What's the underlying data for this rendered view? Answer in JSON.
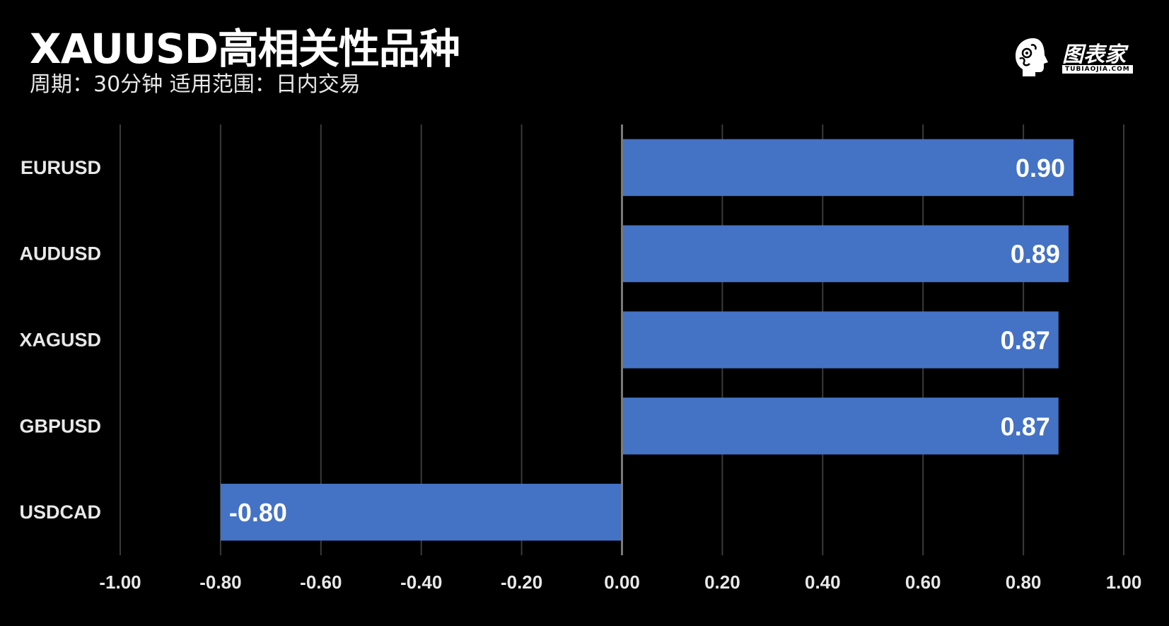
{
  "header": {
    "title": "XAUUSD高相关性品种",
    "subtitle": "周期：30分钟  适用范围：日内交易"
  },
  "logo": {
    "text": "图表家",
    "subtext": "TUBIAOJIA.COM",
    "icon": "brain-head-icon"
  },
  "colors": {
    "background": "#000000",
    "bar": "#4472C4",
    "grid": "#3a3a3a",
    "axis": "#7a7a7a"
  },
  "chart_data": {
    "type": "bar",
    "orientation": "horizontal",
    "categories": [
      "EURUSD",
      "AUDUSD",
      "XAGUSD",
      "GBPUSD",
      "USDCAD"
    ],
    "values": [
      0.9,
      0.89,
      0.87,
      0.87,
      -0.8
    ],
    "value_labels": [
      "0.90",
      "0.89",
      "0.87",
      "0.87",
      "-0.80"
    ],
    "xlim": [
      -1.0,
      1.0
    ],
    "xticks": [
      "-1.00",
      "-0.80",
      "-0.60",
      "-0.40",
      "-0.20",
      "0.00",
      "0.20",
      "0.40",
      "0.60",
      "0.80",
      "1.00"
    ],
    "xtick_values": [
      -1.0,
      -0.8,
      -0.6,
      -0.4,
      -0.2,
      0.0,
      0.2,
      0.4,
      0.6,
      0.8,
      1.0
    ],
    "grid": true,
    "legend": "none"
  }
}
